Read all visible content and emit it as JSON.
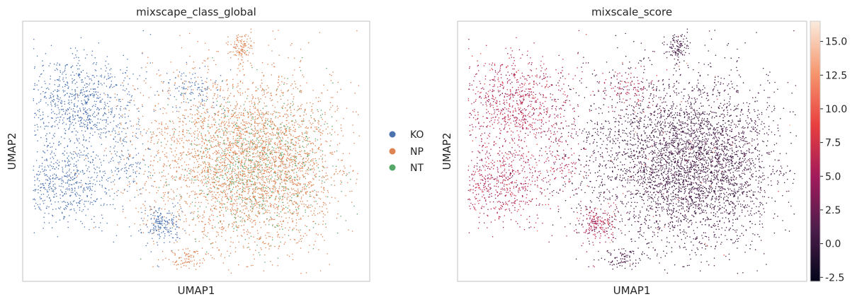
{
  "chart_data": [
    {
      "type": "scatter",
      "title": "mixscape_class_global",
      "xlabel": "UMAP1",
      "ylabel": "UMAP2",
      "grid": false,
      "legend_position": "right",
      "colors": {
        "KO": "#4c72b0",
        "NP": "#dd8452",
        "NT": "#55a868"
      },
      "series": [
        {
          "name": "KO",
          "color": "#4c72b0",
          "regions": [
            {
              "cx": 0.17,
              "cy": 0.67,
              "sx": 0.08,
              "sy": 0.1,
              "n": 900
            },
            {
              "cx": 0.12,
              "cy": 0.38,
              "sx": 0.07,
              "sy": 0.08,
              "n": 600
            },
            {
              "cx": 0.4,
              "cy": 0.22,
              "sx": 0.03,
              "sy": 0.04,
              "n": 200
            },
            {
              "cx": 0.5,
              "cy": 0.74,
              "sx": 0.04,
              "sy": 0.04,
              "n": 120
            },
            {
              "cx": 0.3,
              "cy": 0.45,
              "sx": 0.03,
              "sy": 0.05,
              "n": 90
            }
          ]
        },
        {
          "name": "NP",
          "color": "#dd8452",
          "regions": [
            {
              "cx": 0.62,
              "cy": 0.48,
              "sx": 0.15,
              "sy": 0.17,
              "n": 2600
            },
            {
              "cx": 0.72,
              "cy": 0.42,
              "sx": 0.09,
              "sy": 0.15,
              "n": 900
            },
            {
              "cx": 0.63,
              "cy": 0.9,
              "sx": 0.015,
              "sy": 0.025,
              "n": 110
            },
            {
              "cx": 0.47,
              "cy": 0.09,
              "sx": 0.03,
              "sy": 0.02,
              "n": 90
            }
          ]
        },
        {
          "name": "NT",
          "color": "#55a868",
          "regions": [
            {
              "cx": 0.66,
              "cy": 0.45,
              "sx": 0.12,
              "sy": 0.14,
              "n": 700
            }
          ]
        }
      ]
    },
    {
      "type": "scatter",
      "title": "mixscale_score",
      "xlabel": "UMAP1",
      "ylabel": "UMAP2",
      "grid": false,
      "colorbar": {
        "range": [
          -2.8,
          16.5
        ],
        "ticks": [
          "15.0",
          "12.5",
          "10.0",
          "7.5",
          "5.0",
          "2.5",
          "0.0",
          "-2.5"
        ],
        "tick_values": [
          15.0,
          12.5,
          10.0,
          7.5,
          5.0,
          2.5,
          0.0,
          -2.5
        ],
        "colormap": "rocket"
      },
      "score_by_group": {
        "KO": 6.0,
        "NP": 0.5,
        "NT": 0.2
      }
    }
  ]
}
